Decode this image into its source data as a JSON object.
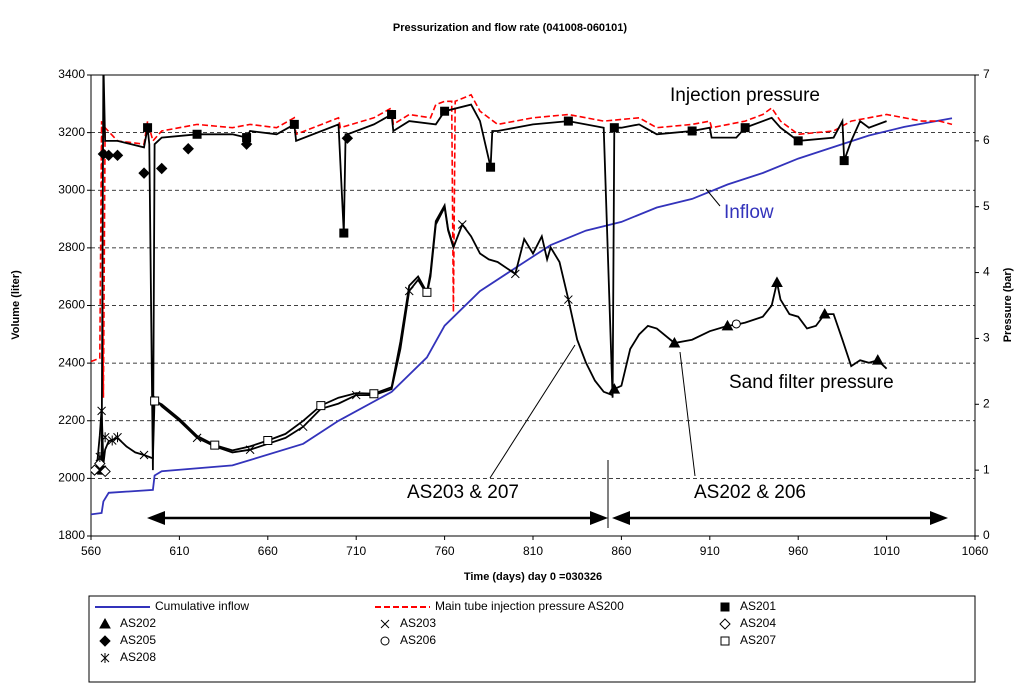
{
  "chart_data": {
    "type": "line",
    "title": "Pressurization and flow rate        (041008-060101)",
    "x_label": "Time (days)   day 0 =030326",
    "y_label": "Volume (liter)",
    "y2_label": "Pressure (bar)",
    "xlim": [
      560,
      1060
    ],
    "xticks": [
      560,
      610,
      660,
      710,
      760,
      810,
      860,
      910,
      960,
      1010,
      1060
    ],
    "ylim": [
      1800,
      3400
    ],
    "yticks": [
      1800,
      2000,
      2200,
      2400,
      2600,
      2800,
      3000,
      3200,
      3400
    ],
    "y2lim": [
      0,
      7
    ],
    "y2ticks": [
      0,
      1,
      2,
      3,
      4,
      5,
      6,
      7
    ],
    "grid": true,
    "annotations": [
      "Injection pressure",
      "Inflow",
      "Sand filter pressure",
      "AS203 & 207",
      "AS202 & 206"
    ],
    "series": [
      {
        "name": "Cumulative inflow",
        "color": "#3333bb",
        "line": true,
        "dash": false,
        "x": [
          560,
          566,
          567,
          570,
          595,
          596,
          600,
          640,
          680,
          700,
          730,
          750,
          760,
          780,
          800,
          820,
          840,
          860,
          880,
          900,
          920,
          940,
          960,
          980,
          1000,
          1020,
          1047
        ],
        "values": [
          1875,
          1880,
          1920,
          1950,
          1960,
          2010,
          2025,
          2045,
          2120,
          2200,
          2300,
          2420,
          2530,
          2650,
          2730,
          2810,
          2860,
          2890,
          2940,
          2970,
          3020,
          3060,
          3110,
          3150,
          3190,
          3220,
          3250
        ]
      },
      {
        "name": "Main tube injection pressure AS200",
        "color": "#ff0000",
        "axis": "y2",
        "line": true,
        "dash": true,
        "x": [
          560,
          565,
          566,
          567,
          568,
          575,
          590,
          592,
          595,
          600,
          620,
          640,
          650,
          665,
          675,
          676,
          700,
          701,
          720,
          730,
          731,
          740,
          752,
          755,
          760,
          764,
          765,
          766,
          775,
          780,
          790,
          810,
          830,
          850,
          870,
          880,
          900,
          910,
          911,
          930,
          940,
          945,
          950,
          960,
          980,
          990,
          1000,
          1010,
          1020,
          1030,
          1040,
          1047
        ],
        "values": [
          2.65,
          2.7,
          6.3,
          2.1,
          6.2,
          6.0,
          5.95,
          6.3,
          6.0,
          6.15,
          6.25,
          6.2,
          6.25,
          6.2,
          6.35,
          6.1,
          6.35,
          6.2,
          6.35,
          6.5,
          6.25,
          6.4,
          6.35,
          6.55,
          6.6,
          6.6,
          3.4,
          6.6,
          6.7,
          6.45,
          6.25,
          6.35,
          6.4,
          6.3,
          6.35,
          6.2,
          6.25,
          6.3,
          6.2,
          6.3,
          6.4,
          6.5,
          6.3,
          6.1,
          6.15,
          6.3,
          6.35,
          6.4,
          6.35,
          6.3,
          6.3,
          6.25
        ]
      },
      {
        "name": "AS201",
        "color": "#000000",
        "axis": "y2",
        "line": true,
        "marker": "square-filled",
        "x": [
          566,
          567,
          568,
          575,
          590,
          592,
          593,
          595,
          596,
          600,
          620,
          640,
          648,
          650,
          665,
          675,
          676,
          700,
          703,
          704,
          705,
          720,
          730,
          731,
          740,
          755,
          760,
          775,
          780,
          786,
          787,
          790,
          810,
          830,
          850,
          855,
          856,
          860,
          870,
          880,
          900,
          910,
          911,
          925,
          930,
          945,
          950,
          960,
          980,
          985,
          986,
          990,
          995,
          1000,
          1010
        ],
        "values": [
          1.0,
          7.2,
          6.0,
          6.0,
          5.9,
          6.2,
          5.95,
          1.0,
          5.95,
          6.05,
          6.1,
          6.1,
          6.05,
          6.15,
          6.1,
          6.25,
          6.0,
          6.25,
          4.6,
          6.1,
          6.1,
          6.25,
          6.4,
          6.15,
          6.3,
          6.25,
          6.45,
          6.55,
          6.3,
          5.6,
          6.15,
          6.15,
          6.25,
          6.3,
          6.2,
          2.1,
          6.2,
          6.2,
          6.25,
          6.1,
          6.15,
          6.2,
          6.05,
          6.05,
          6.2,
          6.35,
          6.2,
          6.0,
          6.05,
          6.3,
          5.7,
          6.0,
          6.3,
          6.2,
          6.3
        ]
      },
      {
        "name": "AS202",
        "color": "#000000",
        "axis": "y2",
        "line": true,
        "marker": "triangle",
        "x": [
          856,
          860,
          865,
          870,
          875,
          880,
          890,
          900,
          910,
          920,
          925,
          930,
          940,
          945,
          948,
          950,
          955,
          960,
          965,
          970,
          975,
          980,
          985,
          990,
          995,
          1000,
          1005,
          1010
        ],
        "values": [
          2.23,
          2.28,
          2.84,
          3.06,
          3.19,
          3.15,
          2.93,
          2.98,
          3.11,
          3.19,
          3.21,
          3.24,
          3.33,
          3.5,
          3.85,
          3.59,
          3.37,
          3.33,
          3.15,
          3.19,
          3.37,
          3.37,
          2.98,
          2.58,
          2.67,
          2.63,
          2.67,
          2.54
        ]
      },
      {
        "name": "AS203",
        "color": "#000000",
        "axis": "y2",
        "line": true,
        "marker": "x",
        "x": [
          560,
          563,
          565,
          566,
          567,
          568,
          570,
          575,
          580,
          585,
          590,
          595,
          596,
          600,
          610,
          620,
          630,
          640,
          650,
          660,
          670,
          680,
          690,
          700,
          710,
          720,
          730,
          735,
          740,
          745,
          750,
          752,
          755,
          760,
          762,
          765,
          770,
          775,
          780,
          785,
          790,
          800,
          805,
          810,
          815,
          818,
          820,
          825,
          830,
          835,
          840,
          845,
          850,
          855
        ],
        "values": [
          1.0,
          0.96,
          1.53,
          1.93,
          1.09,
          1.31,
          1.44,
          1.49,
          1.36,
          1.27,
          1.23,
          1.18,
          2.1,
          1.97,
          1.75,
          1.49,
          1.36,
          1.27,
          1.31,
          1.4,
          1.49,
          1.66,
          1.93,
          2.01,
          2.14,
          2.14,
          2.23,
          2.84,
          3.72,
          3.89,
          3.67,
          3.94,
          4.73,
          4.99,
          4.64,
          4.38,
          4.73,
          4.55,
          4.29,
          4.2,
          4.16,
          3.98,
          4.51,
          4.29,
          4.55,
          4.2,
          4.38,
          4.16,
          3.59,
          2.98,
          2.63,
          2.36,
          2.19,
          2.14
        ]
      },
      {
        "name": "AS204",
        "color": "#000000",
        "axis": "y2",
        "line": false,
        "marker": "diamond-open",
        "x": [
          562,
          565,
          568
        ],
        "values": [
          1.0,
          1.1,
          0.98
        ]
      },
      {
        "name": "AS205",
        "color": "#000000",
        "axis": "y2",
        "line": false,
        "marker": "diamond-filled",
        "x": [
          567,
          570,
          575,
          590,
          600,
          615,
          648,
          705
        ],
        "values": [
          5.8,
          5.78,
          5.78,
          5.51,
          5.58,
          5.88,
          5.95,
          6.04
        ]
      },
      {
        "name": "AS206",
        "color": "#000000",
        "axis": "y2",
        "line": false,
        "marker": "circle-open",
        "x": [
          925
        ],
        "values": [
          3.22
        ]
      },
      {
        "name": "AS207",
        "color": "#000000",
        "axis": "y2",
        "line": true,
        "marker": "square-open",
        "x": [
          596,
          600,
          610,
          620,
          630,
          640,
          650,
          660,
          670,
          680,
          690,
          700,
          710,
          720,
          730,
          735,
          740,
          745,
          750,
          752,
          755,
          760,
          762,
          765
        ],
        "values": [
          2.05,
          2.0,
          1.78,
          1.52,
          1.38,
          1.3,
          1.36,
          1.45,
          1.55,
          1.75,
          1.98,
          2.1,
          2.17,
          2.16,
          2.26,
          2.95,
          3.8,
          3.94,
          3.7,
          4.0,
          4.78,
          5.02,
          4.66,
          4.4
        ]
      },
      {
        "name": "AS208",
        "color": "#000000",
        "axis": "y2",
        "line": false,
        "marker": "asterisk",
        "x": [
          565,
          566,
          568,
          572,
          575
        ],
        "values": [
          1.2,
          1.9,
          1.5,
          1.45,
          1.5
        ]
      }
    ]
  }
}
